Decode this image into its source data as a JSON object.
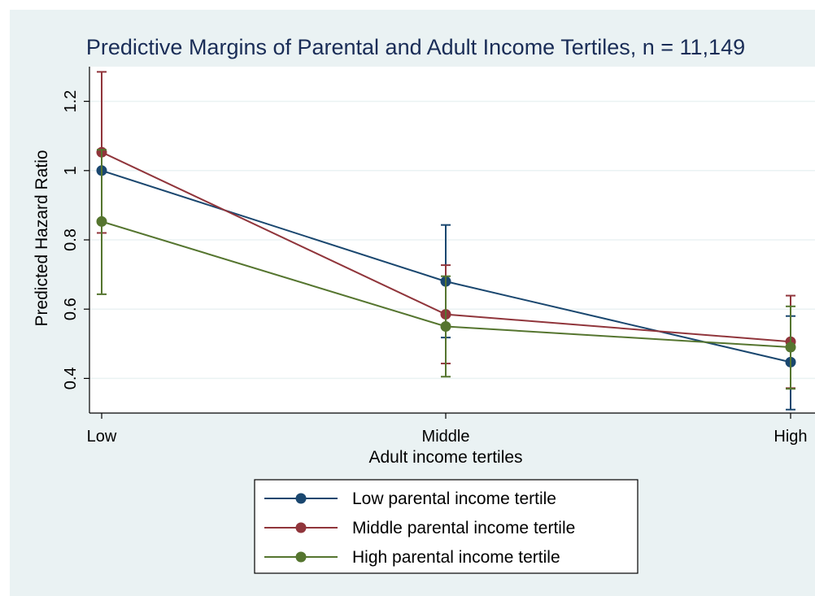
{
  "chart_data": {
    "type": "line",
    "title": "Predictive Margins of Parental and Adult Income Tertiles, n = 11,149",
    "xlabel": "Adult income tertiles",
    "ylabel": "Predicted Hazard Ratio",
    "categories": [
      "Low",
      "Middle",
      "High"
    ],
    "ylim": [
      0.3,
      1.3
    ],
    "yticks": [
      0.4,
      0.6,
      0.8,
      1,
      1.2
    ],
    "ytick_labels": [
      "0.4",
      "0.6",
      "0.8",
      "1",
      "1.2"
    ],
    "grid": true,
    "legend_position": "bottom",
    "series": [
      {
        "name": "Low parental income tertile",
        "color": "#1a476f",
        "values": [
          1.0,
          0.68,
          0.447
        ],
        "ci_low": [
          1.0,
          0.518,
          0.31
        ],
        "ci_high": [
          1.0,
          0.843,
          0.58
        ]
      },
      {
        "name": "Middle parental income tertile",
        "color": "#90353b",
        "values": [
          1.053,
          0.585,
          0.506
        ],
        "ci_low": [
          0.82,
          0.443,
          0.372
        ],
        "ci_high": [
          1.285,
          0.727,
          0.639
        ]
      },
      {
        "name": "High parental income tertile",
        "color": "#55752f",
        "values": [
          0.853,
          0.55,
          0.49
        ],
        "ci_low": [
          0.643,
          0.405,
          0.37
        ],
        "ci_high": [
          1.06,
          0.695,
          0.608
        ]
      }
    ]
  }
}
